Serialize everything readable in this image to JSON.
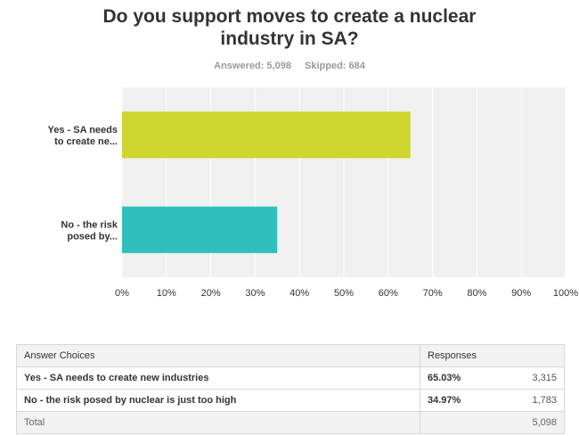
{
  "title_lines": [
    "Do you support moves to create a nuclear",
    "industry in SA?"
  ],
  "stats": {
    "answered": "Answered: 5,098",
    "skipped": "Skipped: 684"
  },
  "colors": {
    "bar1": "#cfd52f",
    "bar2": "#2fbfbf",
    "plot_bg": "#f0f0f0",
    "grid": "#ffffff"
  },
  "chart_data": {
    "type": "bar",
    "orientation": "horizontal",
    "categories": [
      [
        "Yes - SA needs",
        "to create ne..."
      ],
      [
        "No - the risk",
        "posed by..."
      ]
    ],
    "values": [
      65.03,
      34.97
    ],
    "xlim": [
      0,
      100
    ],
    "ticks": [
      "0%",
      "10%",
      "20%",
      "30%",
      "40%",
      "50%",
      "60%",
      "70%",
      "80%",
      "90%",
      "100%"
    ],
    "tick_values": [
      0,
      10,
      20,
      30,
      40,
      50,
      60,
      70,
      80,
      90,
      100
    ],
    "grid": true
  },
  "table": {
    "headers": [
      "Answer Choices",
      "Responses"
    ],
    "rows": [
      {
        "choice": "Yes - SA needs to create new industries",
        "percent": "65.03%",
        "count": "3,315"
      },
      {
        "choice": "No - the risk posed by nuclear is just too high",
        "percent": "34.97%",
        "count": "1,783"
      }
    ],
    "total_label": "Total",
    "total_count": "5,098"
  }
}
